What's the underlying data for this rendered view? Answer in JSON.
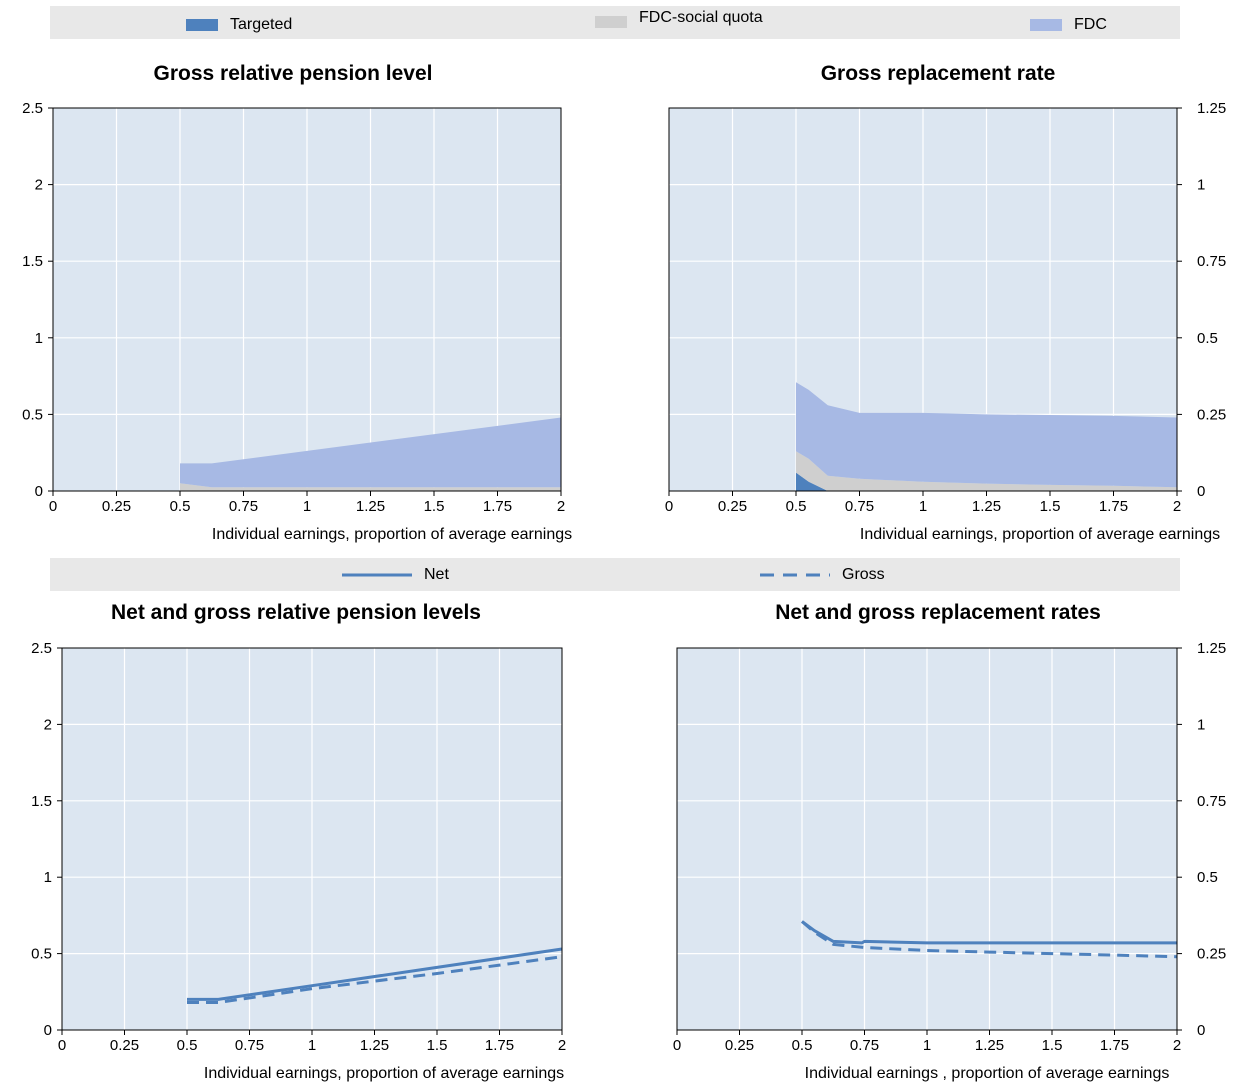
{
  "colors": {
    "targeted": "#4e81bd",
    "fdc_social_quota": "#cfcfcf",
    "fdc": "#a7b9e4",
    "plot_bg": "#dce6f1",
    "grid": "#ffffff",
    "line": "#4e81bd"
  },
  "legend_top": {
    "items": [
      {
        "label": "Targeted",
        "color": "#4e81bd"
      },
      {
        "label": "FDC-social quota",
        "color": "#cfcfcf"
      },
      {
        "label": "FDC",
        "color": "#a7b9e4"
      }
    ]
  },
  "legend_bottom": {
    "items": [
      {
        "label": "Net",
        "style": "solid"
      },
      {
        "label": "Gross",
        "style": "dashed"
      }
    ]
  },
  "chart_data": [
    {
      "type": "area",
      "title": "Gross relative pension level",
      "xlabel": "Individual earnings, proportion of average earnings",
      "ylabel": "",
      "xlim": [
        0,
        2
      ],
      "ylim": [
        0,
        2.5
      ],
      "x_ticks": [
        "0",
        "0.25",
        "0.5",
        "0.75",
        "1",
        "1.25",
        "1.5",
        "1.75",
        "2"
      ],
      "y_ticks": [
        "0",
        "0.5",
        "1",
        "1.5",
        "2",
        "2.5"
      ],
      "y_axis_side": "left",
      "stacked": true,
      "grid": true,
      "series": [
        {
          "name": "Targeted",
          "x": [
            0.5,
            0.625,
            2
          ],
          "values": [
            0,
            0,
            0
          ]
        },
        {
          "name": "FDC-social quota",
          "x": [
            0.5,
            0.625,
            2
          ],
          "values": [
            0.05,
            0.025,
            0.025
          ]
        },
        {
          "name": "FDC",
          "x": [
            0.5,
            0.625,
            2
          ],
          "values": [
            0.13,
            0.155,
            0.455
          ]
        }
      ]
    },
    {
      "type": "area",
      "title": "Gross replacement rate",
      "xlabel": "Individual earnings, proportion of average earnings",
      "ylabel": "",
      "xlim": [
        0,
        2
      ],
      "ylim": [
        0,
        1.25
      ],
      "x_ticks": [
        "0",
        "0.25",
        "0.5",
        "0.75",
        "1",
        "1.25",
        "1.5",
        "1.75",
        "2"
      ],
      "y_ticks": [
        "0",
        "0.25",
        "0.5",
        "0.75",
        "1",
        "1.25"
      ],
      "y_axis_side": "right",
      "stacked": true,
      "grid": true,
      "series": [
        {
          "name": "Targeted",
          "x": [
            0.5,
            0.55,
            0.625,
            0.75,
            1,
            1.25,
            1.5,
            1.75,
            2
          ],
          "values": [
            0.06,
            0.03,
            0,
            0,
            0,
            0,
            0,
            0,
            0
          ]
        },
        {
          "name": "FDC-social quota",
          "x": [
            0.5,
            0.55,
            0.625,
            0.75,
            1,
            1.25,
            1.5,
            1.75,
            2
          ],
          "values": [
            0.07,
            0.075,
            0.05,
            0.04,
            0.03,
            0.024,
            0.02,
            0.017,
            0.012
          ]
        },
        {
          "name": "FDC",
          "x": [
            0.5,
            0.55,
            0.625,
            0.75,
            1,
            1.25,
            1.5,
            1.75,
            2
          ],
          "values": [
            0.225,
            0.225,
            0.23,
            0.215,
            0.225,
            0.226,
            0.228,
            0.228,
            0.228
          ]
        }
      ]
    },
    {
      "type": "line",
      "title": "Net and gross relative pension levels",
      "xlabel": "Individual earnings, proportion of average earnings",
      "ylabel": "",
      "xlim": [
        0,
        2
      ],
      "ylim": [
        0,
        2.5
      ],
      "x_ticks": [
        "0",
        "0.25",
        "0.5",
        "0.75",
        "1",
        "1.25",
        "1.5",
        "1.75",
        "2"
      ],
      "y_ticks": [
        "0",
        "0.5",
        "1",
        "1.5",
        "2",
        "2.5"
      ],
      "y_axis_side": "left",
      "grid": true,
      "series": [
        {
          "name": "Net",
          "style": "solid",
          "x": [
            0.5,
            0.625,
            1,
            1.5,
            2
          ],
          "values": [
            0.2,
            0.2,
            0.29,
            0.41,
            0.53
          ]
        },
        {
          "name": "Gross",
          "style": "dashed",
          "x": [
            0.5,
            0.625,
            1,
            1.5,
            2
          ],
          "values": [
            0.18,
            0.18,
            0.27,
            0.37,
            0.48
          ]
        }
      ]
    },
    {
      "type": "line",
      "title": "Net and gross replacement rates",
      "xlabel": "Individual earnings , proportion of average earnings",
      "ylabel": "",
      "xlim": [
        0,
        2
      ],
      "ylim": [
        0,
        1.25
      ],
      "x_ticks": [
        "0",
        "0.25",
        "0.5",
        "0.75",
        "1",
        "1.25",
        "1.5",
        "1.75",
        "2"
      ],
      "y_ticks": [
        "0",
        "0.25",
        "0.5",
        "0.75",
        "1",
        "1.25"
      ],
      "y_axis_side": "right",
      "grid": true,
      "series": [
        {
          "name": "Net",
          "style": "solid",
          "x": [
            0.5,
            0.55,
            0.625,
            0.74,
            0.75,
            1,
            1.5,
            2
          ],
          "values": [
            0.355,
            0.325,
            0.29,
            0.285,
            0.29,
            0.285,
            0.285,
            0.285
          ]
        },
        {
          "name": "Gross",
          "style": "dashed",
          "x": [
            0.5,
            0.55,
            0.625,
            0.75,
            1,
            1.25,
            1.5,
            1.75,
            2
          ],
          "values": [
            0.355,
            0.32,
            0.28,
            0.27,
            0.26,
            0.255,
            0.25,
            0.245,
            0.24
          ]
        }
      ]
    }
  ]
}
